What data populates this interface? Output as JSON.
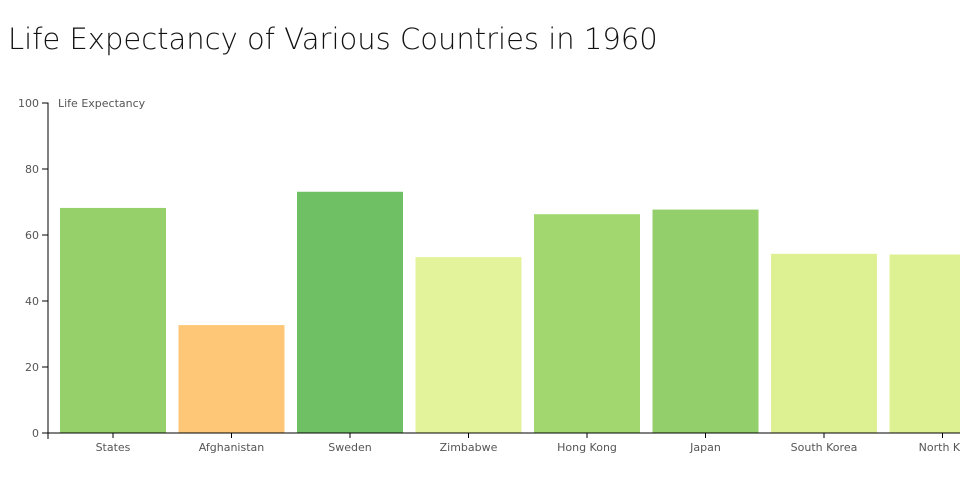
{
  "chart_data": {
    "type": "bar",
    "title": "Life Expectancy of Various Countries in 1960",
    "ylabel": "Life Expectancy",
    "xlabel": "",
    "ylim": [
      0,
      100
    ],
    "yticks": [
      0,
      20,
      40,
      60,
      80,
      100
    ],
    "grid": false,
    "categories": [
      "States",
      "Afghanistan",
      "Sweden",
      "Zimbabwe",
      "Hong Kong",
      "Japan",
      "South Korea",
      "North Ko"
    ],
    "values": [
      68.2,
      32.7,
      73.1,
      53.3,
      66.3,
      67.7,
      54.3,
      54.1
    ],
    "colors": [
      "#95d06b",
      "#fdc777",
      "#6fc064",
      "#e3f39b",
      "#a1d76e",
      "#93cf6b",
      "#ddf193",
      "#ddf193"
    ],
    "axis_color": "#000000",
    "tick_label_color": "#555555"
  }
}
